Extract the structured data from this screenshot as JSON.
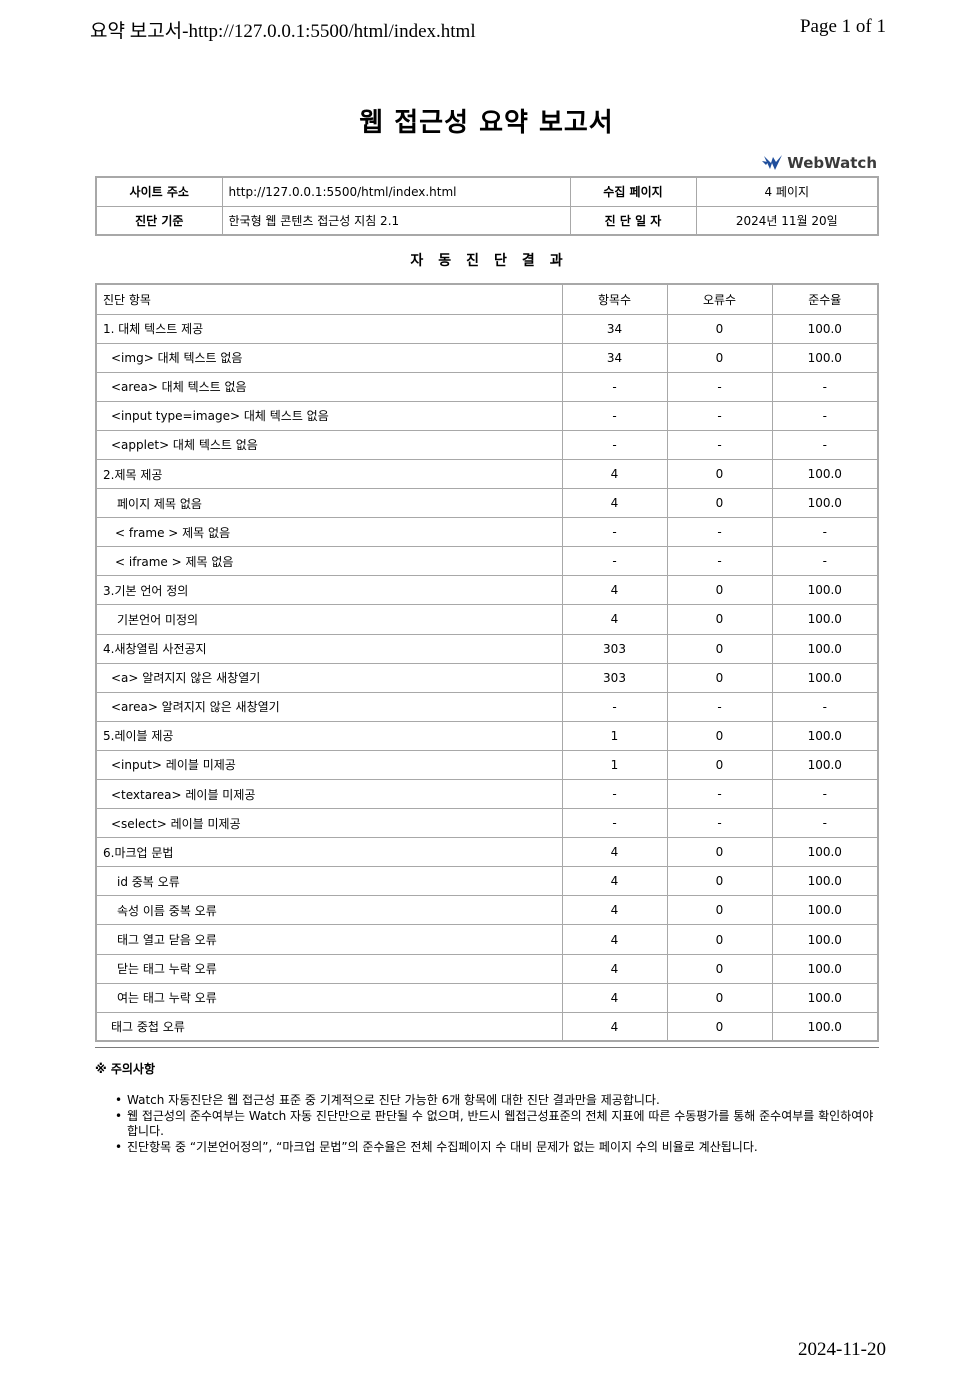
{
  "print_header": {
    "left": "요약 보고서-http://127.0.0.1:5500/html/index.html",
    "right": "Page 1 of 1"
  },
  "title": "웹 접근성 요약 보고서",
  "logo": {
    "text": "WebWatch",
    "icon": "webwatch-logo-icon",
    "color": "#1f4e9c"
  },
  "info": {
    "site_label": "사이트 주소",
    "site_value": "http://127.0.0.1:5500/html/index.html",
    "pages_label": "수집 페이지",
    "pages_value": "4 페이지",
    "standard_label": "진단 기준",
    "standard_value": "한국형 웹 콘텐츠 접근성 지침 2.1",
    "date_label": "진 단 일 자",
    "date_value": "2024년 11월 20일"
  },
  "section_title": "자동진단결과",
  "results": {
    "headers": {
      "item": "진단 항목",
      "count": "항목수",
      "errors": "오류수",
      "rate": "준수율"
    },
    "rows": [
      {
        "name": "1. 대체 텍스트 제공",
        "level": 0,
        "count": "34",
        "errors": "0",
        "rate": "100.0"
      },
      {
        "name": "<img> 대체 텍스트 없음",
        "level": 1,
        "count": "34",
        "errors": "0",
        "rate": "100.0"
      },
      {
        "name": "<area> 대체 텍스트 없음",
        "level": 1,
        "count": "-",
        "errors": "-",
        "rate": "-"
      },
      {
        "name": "<input type=image> 대체 텍스트 없음",
        "level": 1,
        "count": "-",
        "errors": "-",
        "rate": "-"
      },
      {
        "name": "<applet> 대체 텍스트 없음",
        "level": 1,
        "count": "-",
        "errors": "-",
        "rate": "-"
      },
      {
        "name": "2.제목 제공",
        "level": 0,
        "count": "4",
        "errors": "0",
        "rate": "100.0"
      },
      {
        "name": "페이지 제목 없음",
        "level": 2,
        "count": "4",
        "errors": "0",
        "rate": "100.0"
      },
      {
        "name": "< frame > 제목 없음",
        "level": 3,
        "count": "-",
        "errors": "-",
        "rate": "-"
      },
      {
        "name": "< iframe > 제목 없음",
        "level": 3,
        "count": "-",
        "errors": "-",
        "rate": "-"
      },
      {
        "name": "3.기본 언어 정의",
        "level": 0,
        "count": "4",
        "errors": "0",
        "rate": "100.0"
      },
      {
        "name": "기본언어 미정의",
        "level": 2,
        "count": "4",
        "errors": "0",
        "rate": "100.0"
      },
      {
        "name": "4.새창열림 사전공지",
        "level": 0,
        "count": "303",
        "errors": "0",
        "rate": "100.0"
      },
      {
        "name": "<a> 알려지지 않은 새창열기",
        "level": 1,
        "count": "303",
        "errors": "0",
        "rate": "100.0"
      },
      {
        "name": "<area> 알려지지 않은 새창열기",
        "level": 1,
        "count": "-",
        "errors": "-",
        "rate": "-"
      },
      {
        "name": "5.레이블 제공",
        "level": 0,
        "count": "1",
        "errors": "0",
        "rate": "100.0"
      },
      {
        "name": "<input> 레이블 미제공",
        "level": 1,
        "count": "1",
        "errors": "0",
        "rate": "100.0"
      },
      {
        "name": "<textarea> 레이블 미제공",
        "level": 1,
        "count": "-",
        "errors": "-",
        "rate": "-"
      },
      {
        "name": "<select> 레이블 미제공",
        "level": 1,
        "count": "-",
        "errors": "-",
        "rate": "-"
      },
      {
        "name": "6.마크업 문법",
        "level": 0,
        "count": "4",
        "errors": "0",
        "rate": "100.0"
      },
      {
        "name": "id 중복 오류",
        "level": 2,
        "count": "4",
        "errors": "0",
        "rate": "100.0"
      },
      {
        "name": "속성 이름 중복 오류",
        "level": 2,
        "count": "4",
        "errors": "0",
        "rate": "100.0"
      },
      {
        "name": "태그 열고 닫음 오류",
        "level": 2,
        "count": "4",
        "errors": "0",
        "rate": "100.0"
      },
      {
        "name": "닫는 태그 누락 오류",
        "level": 2,
        "count": "4",
        "errors": "0",
        "rate": "100.0"
      },
      {
        "name": "여는 태그 누락 오류",
        "level": 2,
        "count": "4",
        "errors": "0",
        "rate": "100.0"
      },
      {
        "name": "태그 중첩 오류",
        "level": 1,
        "count": "4",
        "errors": "0",
        "rate": "100.0"
      }
    ]
  },
  "notes": {
    "title": "※ 주의사항",
    "items": [
      "Watch 자동진단은 웹 접근성 표준 중 기계적으로 진단 가능한 6개 항목에 대한 진단 결과만을 제공합니다.",
      "웹 접근성의 준수여부는 Watch 자동 진단만으로 판단될 수 없으며, 반드시 웹접근성표준의 전체 지표에 따른 수동평가를 통해 준수여부를 확인하여야 합니다.",
      "진단항목 중 “기본언어정의”, “마크업 문법”의 준수율은 전체 수집페이지 수 대비 문제가 없는 페이지 수의 비율로 계산됩니다."
    ]
  },
  "print_footer": "2024-11-20"
}
